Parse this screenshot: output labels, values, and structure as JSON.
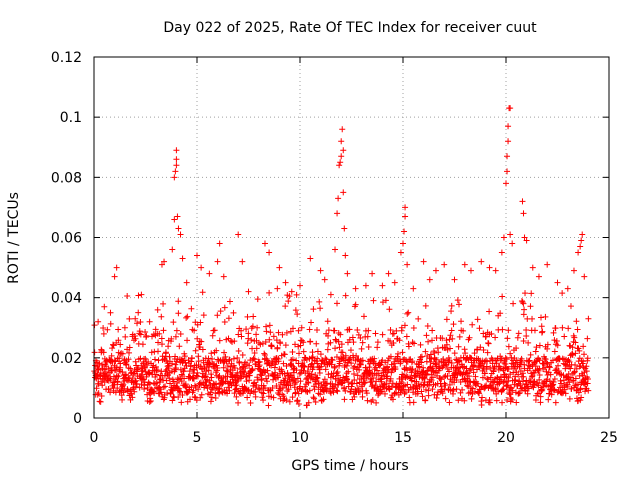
{
  "chart_data": {
    "type": "scatter",
    "title": "Day 022 of 2025, Rate Of TEC Index for receiver cuut",
    "xlabel": "GPS time / hours",
    "ylabel": "ROTI / TECUs",
    "xlim": [
      0,
      25
    ],
    "ylim": [
      0,
      0.12
    ],
    "xticks": [
      0,
      5,
      10,
      15,
      20,
      25
    ],
    "xtick_labels": [
      "0",
      "5",
      "10",
      "15",
      "20",
      "25"
    ],
    "yticks": [
      0,
      0.02,
      0.04,
      0.06,
      0.08,
      0.1,
      0.12
    ],
    "ytick_labels": [
      "0",
      "0.02",
      "0.04",
      "0.06",
      "0.08",
      "0.1",
      "0.12"
    ],
    "grid": true,
    "marker": "+",
    "series": [
      {
        "name": "ROTI",
        "color": "#ff0000",
        "note": "dense scatter; main band 0.005-0.035 TECU/s across 0-24 h",
        "points": [
          [
            0.2,
            0.032
          ],
          [
            0.5,
            0.037
          ],
          [
            0.8,
            0.035
          ],
          [
            1.0,
            0.047
          ],
          [
            1.1,
            0.05
          ],
          [
            1.5,
            0.03
          ],
          [
            2.0,
            0.033
          ],
          [
            2.3,
            0.041
          ],
          [
            2.7,
            0.032
          ],
          [
            3.3,
            0.051
          ],
          [
            3.4,
            0.052
          ],
          [
            3.8,
            0.056
          ],
          [
            3.9,
            0.066
          ],
          [
            3.9,
            0.08
          ],
          [
            3.95,
            0.082
          ],
          [
            4.0,
            0.084
          ],
          [
            4.0,
            0.086
          ],
          [
            4.0,
            0.089
          ],
          [
            4.05,
            0.067
          ],
          [
            4.1,
            0.063
          ],
          [
            4.2,
            0.061
          ],
          [
            4.3,
            0.053
          ],
          [
            4.5,
            0.045
          ],
          [
            5.0,
            0.054
          ],
          [
            5.2,
            0.05
          ],
          [
            5.6,
            0.048
          ],
          [
            6.0,
            0.052
          ],
          [
            6.1,
            0.058
          ],
          [
            6.3,
            0.047
          ],
          [
            7.0,
            0.061
          ],
          [
            7.2,
            0.052
          ],
          [
            7.5,
            0.042
          ],
          [
            8.3,
            0.058
          ],
          [
            8.5,
            0.055
          ],
          [
            8.9,
            0.043
          ],
          [
            9.0,
            0.05
          ],
          [
            9.3,
            0.045
          ],
          [
            9.6,
            0.042
          ],
          [
            10.0,
            0.044
          ],
          [
            10.5,
            0.053
          ],
          [
            11.0,
            0.049
          ],
          [
            11.2,
            0.046
          ],
          [
            11.5,
            0.041
          ],
          [
            11.7,
            0.056
          ],
          [
            11.8,
            0.068
          ],
          [
            11.85,
            0.073
          ],
          [
            11.9,
            0.084
          ],
          [
            11.95,
            0.085
          ],
          [
            12.0,
            0.087
          ],
          [
            12.0,
            0.092
          ],
          [
            12.05,
            0.096
          ],
          [
            12.1,
            0.089
          ],
          [
            12.1,
            0.075
          ],
          [
            12.15,
            0.063
          ],
          [
            12.2,
            0.054
          ],
          [
            12.3,
            0.048
          ],
          [
            12.7,
            0.043
          ],
          [
            13.2,
            0.044
          ],
          [
            13.5,
            0.048
          ],
          [
            14.0,
            0.044
          ],
          [
            14.3,
            0.048
          ],
          [
            14.6,
            0.045
          ],
          [
            14.9,
            0.055
          ],
          [
            15.0,
            0.058
          ],
          [
            15.05,
            0.062
          ],
          [
            15.1,
            0.067
          ],
          [
            15.1,
            0.07
          ],
          [
            15.2,
            0.051
          ],
          [
            15.5,
            0.043
          ],
          [
            16.0,
            0.052
          ],
          [
            16.3,
            0.046
          ],
          [
            16.6,
            0.049
          ],
          [
            17.0,
            0.051
          ],
          [
            17.5,
            0.046
          ],
          [
            18.0,
            0.051
          ],
          [
            18.3,
            0.049
          ],
          [
            18.8,
            0.052
          ],
          [
            19.2,
            0.05
          ],
          [
            19.5,
            0.049
          ],
          [
            19.8,
            0.055
          ],
          [
            19.9,
            0.06
          ],
          [
            20.0,
            0.078
          ],
          [
            20.05,
            0.082
          ],
          [
            20.05,
            0.087
          ],
          [
            20.1,
            0.092
          ],
          [
            20.1,
            0.097
          ],
          [
            20.15,
            0.103
          ],
          [
            20.2,
            0.103
          ],
          [
            20.2,
            0.061
          ],
          [
            20.3,
            0.058
          ],
          [
            20.8,
            0.072
          ],
          [
            20.85,
            0.068
          ],
          [
            20.9,
            0.06
          ],
          [
            21.0,
            0.059
          ],
          [
            21.3,
            0.05
          ],
          [
            21.6,
            0.047
          ],
          [
            22.0,
            0.051
          ],
          [
            22.5,
            0.045
          ],
          [
            23.0,
            0.043
          ],
          [
            23.3,
            0.049
          ],
          [
            23.5,
            0.055
          ],
          [
            23.6,
            0.057
          ],
          [
            23.65,
            0.059
          ],
          [
            23.7,
            0.061
          ],
          [
            23.8,
            0.047
          ],
          [
            24.0,
            0.033
          ]
        ]
      }
    ]
  }
}
